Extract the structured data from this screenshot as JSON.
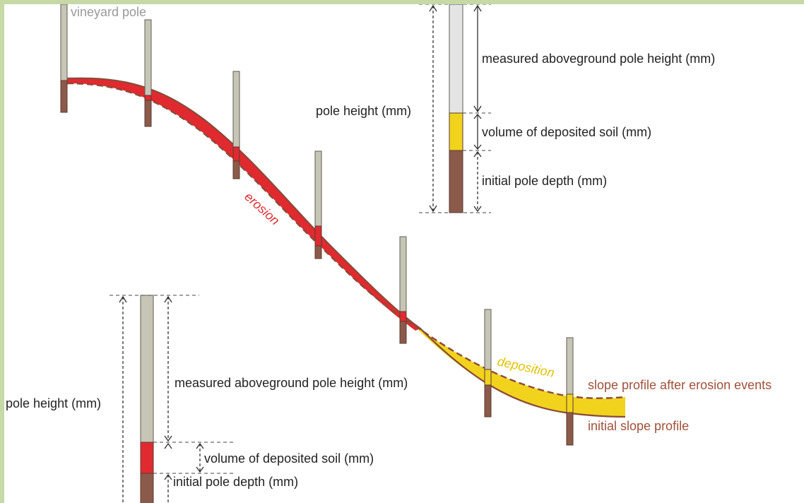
{
  "labels": {
    "vineyard_pole": "vineyard pole",
    "erosion": "erosion",
    "deposition": "deposition",
    "slope_after": "slope profile after erosion events",
    "slope_initial": "initial slope profile"
  },
  "top_legend": {
    "pole_height": "pole height (mm)",
    "aboveground": "measured aboveground pole height  (mm)",
    "deposited": "volume of deposited soil (mm)",
    "depth": "initial pole depth  (mm)"
  },
  "bottom_legend": {
    "pole_height": "pole height (mm)",
    "aboveground": "measured aboveground pole height (mm)",
    "deposited": "volume of deposited soil (mm)",
    "depth": "initial pole depth (mm)"
  },
  "colors": {
    "border": "#c6d9a7",
    "erosion": "#e02a2f",
    "deposition": "#f1d31d",
    "pole_above": "#c7c5b5",
    "pole_below": "#8c5a4a",
    "profile": "#8a4a38"
  }
}
